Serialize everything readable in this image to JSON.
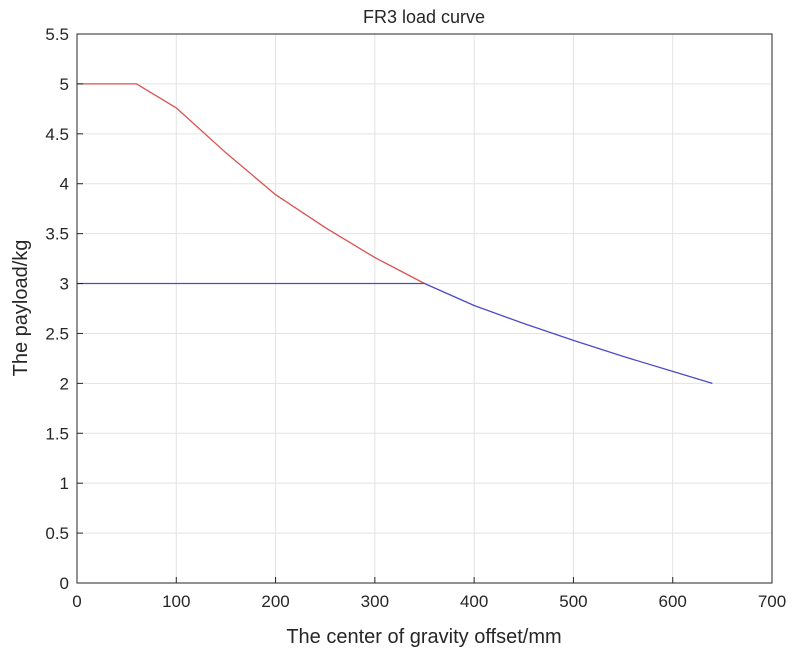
{
  "chart_data": {
    "type": "line",
    "title": "FR3 load curve",
    "xlabel": "The center of gravity offset/mm",
    "ylabel": "The payload/kg",
    "xlim": [
      0,
      700
    ],
    "ylim": [
      0,
      5.5
    ],
    "xticks": [
      0,
      100,
      200,
      300,
      400,
      500,
      600,
      700
    ],
    "yticks": [
      0,
      0.5,
      1,
      1.5,
      2,
      2.5,
      3,
      3.5,
      4,
      4.5,
      5,
      5.5
    ],
    "grid": true,
    "series": [
      {
        "color": "#d9534f",
        "x": [
          0,
          60,
          100,
          150,
          200,
          250,
          300,
          350
        ],
        "y": [
          5,
          5,
          4.76,
          4.31,
          3.89,
          3.56,
          3.26,
          3.0
        ]
      },
      {
        "color": "#4b4bc8",
        "x": [
          0,
          350,
          400,
          450,
          500,
          550,
          600,
          640
        ],
        "y": [
          3,
          3,
          2.78,
          2.6,
          2.43,
          2.27,
          2.12,
          2.0
        ]
      }
    ]
  }
}
